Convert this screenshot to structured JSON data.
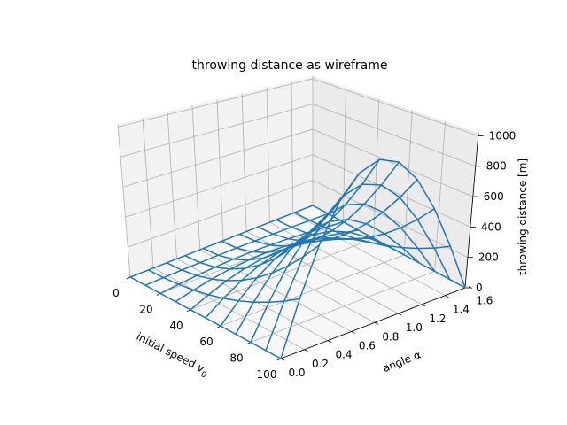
{
  "chart_data": {
    "type": "wireframe",
    "title": "throwing distance as wireframe",
    "xlabel": "initial speed v",
    "xlabel_subscript": "0",
    "ylabel": "angle α",
    "zlabel": "throwing distance [m]",
    "x_ticks": [
      "0",
      "20",
      "40",
      "60",
      "80",
      "100"
    ],
    "y_ticks": [
      "0.0",
      "0.2",
      "0.4",
      "0.6",
      "0.8",
      "1.0",
      "1.2",
      "1.4",
      "1.6"
    ],
    "z_ticks": [
      "0",
      "200",
      "400",
      "600",
      "800",
      "1000"
    ],
    "xlim": [
      0,
      100
    ],
    "ylim": [
      0,
      1.5708
    ],
    "zlim": [
      0,
      1020
    ],
    "x_grid_speeds": [
      0,
      10,
      20,
      30,
      40,
      50,
      60,
      70,
      80,
      90,
      100
    ],
    "y_grid_angles": [
      0,
      0.1571,
      0.3142,
      0.4712,
      0.6283,
      0.7854,
      0.9425,
      1.0996,
      1.2566,
      1.4137,
      1.5708
    ],
    "z_formula": "v^2 * sin(2*alpha) / g",
    "g": 9.81,
    "grid": true,
    "line_color": "#1f77b4"
  }
}
